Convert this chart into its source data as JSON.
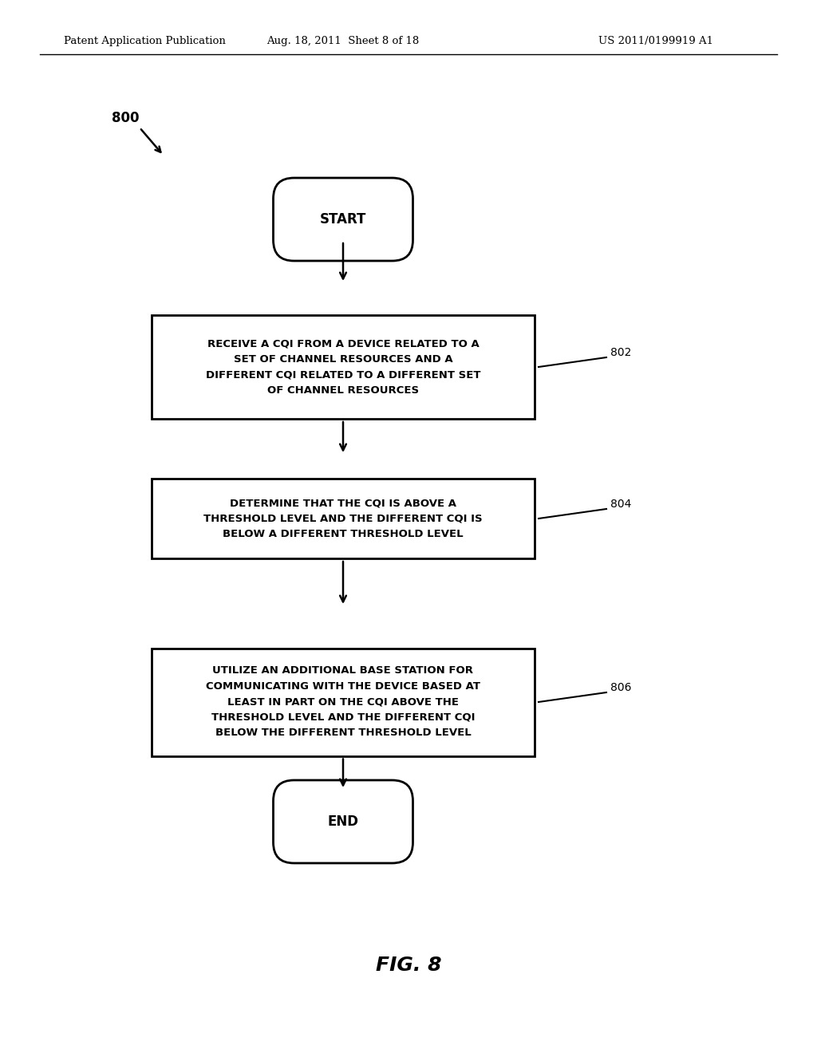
{
  "bg_color": "#ffffff",
  "text_color": "#000000",
  "header_left": "Patent Application Publication",
  "header_center": "Aug. 18, 2011  Sheet 8 of 18",
  "header_right": "US 2011/0199919 A1",
  "fig_label": "FIG. 8",
  "diagram_label": "800",
  "start_label": "START",
  "end_label": "END",
  "box802_text": "RECEIVE A CQI FROM A DEVICE RELATED TO A\nSET OF CHANNEL RESOURCES AND A\nDIFFERENT CQI RELATED TO A DIFFERENT SET\nOF CHANNEL RESOURCES",
  "box802_ref": "802",
  "box804_text": "DETERMINE THAT THE CQI IS ABOVE A\nTHRESHOLD LEVEL AND THE DIFFERENT CQI IS\nBELOW A DIFFERENT THRESHOLD LEVEL",
  "box804_ref": "804",
  "box806_text": "UTILIZE AN ADDITIONAL BASE STATION FOR\nCOMMUNICATING WITH THE DEVICE BASED AT\nLEAST IN PART ON THE CQI ABOVE THE\nTHRESHOLD LEVEL AND THE DIFFERENT CQI\nBELOW THE DIFFERENT THRESHOLD LEVEL",
  "box806_ref": "806"
}
